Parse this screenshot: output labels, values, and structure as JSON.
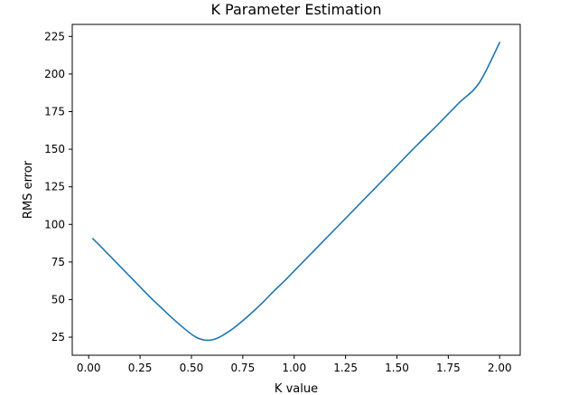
{
  "chart_data": {
    "type": "line",
    "title": "K Parameter Estimation",
    "xlabel": "K value",
    "ylabel": "RMS error",
    "xlim": [
      -0.08,
      2.1
    ],
    "ylim": [
      13,
      233
    ],
    "xticks": [
      0.0,
      0.25,
      0.5,
      0.75,
      1.0,
      1.25,
      1.5,
      1.75,
      2.0
    ],
    "xtick_labels": [
      "0.00",
      "0.25",
      "0.50",
      "0.75",
      "1.00",
      "1.25",
      "1.50",
      "1.75",
      "2.00"
    ],
    "yticks": [
      25,
      50,
      75,
      100,
      125,
      150,
      175,
      200,
      225
    ],
    "ytick_labels": [
      "25",
      "50",
      "75",
      "100",
      "125",
      "150",
      "175",
      "200",
      "225"
    ],
    "grid": false,
    "series": [
      {
        "color": "#1f77b4",
        "x": [
          0.02,
          0.05,
          0.1,
          0.15,
          0.2,
          0.25,
          0.3,
          0.35,
          0.4,
          0.45,
          0.5,
          0.53,
          0.56,
          0.59,
          0.62,
          0.65,
          0.7,
          0.75,
          0.8,
          0.85,
          0.9,
          0.95,
          1.0,
          1.1,
          1.2,
          1.3,
          1.4,
          1.5,
          1.6,
          1.7,
          1.8,
          1.9,
          2.0
        ],
        "y": [
          90.5,
          86.5,
          79.5,
          72.5,
          65.5,
          58.5,
          51.5,
          45.0,
          38.5,
          32.5,
          27.0,
          24.5,
          23.2,
          23.0,
          24.0,
          26.0,
          30.5,
          36.0,
          42.0,
          48.5,
          55.5,
          62.0,
          69.0,
          83.0,
          97.0,
          111.0,
          125.0,
          139.0,
          153.0,
          166.5,
          180.5,
          194.0,
          221.0
        ]
      }
    ]
  }
}
